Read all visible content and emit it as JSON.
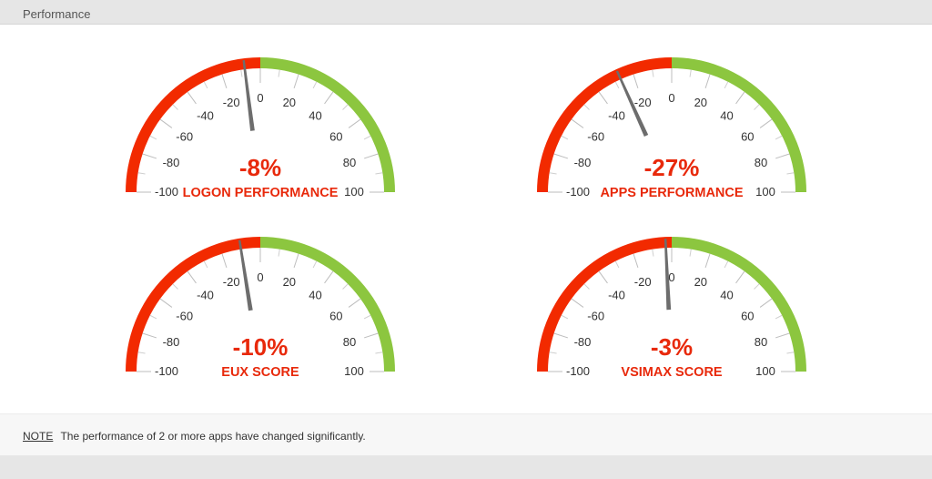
{
  "panel": {
    "title": "Performance"
  },
  "gauge_scale": {
    "min": -100,
    "max": 100,
    "major_ticks": [
      -100,
      -80,
      -60,
      -40,
      -20,
      0,
      20,
      40,
      60,
      80,
      100
    ],
    "negative_color": "#f22a00",
    "positive_color": "#8cc63f",
    "needle_color": "#6d6d6d"
  },
  "gauges": [
    {
      "value": -8,
      "value_label": "-8%",
      "name": "LOGON PERFORMANCE"
    },
    {
      "value": -27,
      "value_label": "-27%",
      "name": "APPS PERFORMANCE"
    },
    {
      "value": -10,
      "value_label": "-10%",
      "name": "EUX SCORE"
    },
    {
      "value": -3,
      "value_label": "-3%",
      "name": "VSIMAX SCORE"
    }
  ],
  "note": {
    "label": "NOTE",
    "text": "The performance of 2 or more apps have changed significantly."
  }
}
